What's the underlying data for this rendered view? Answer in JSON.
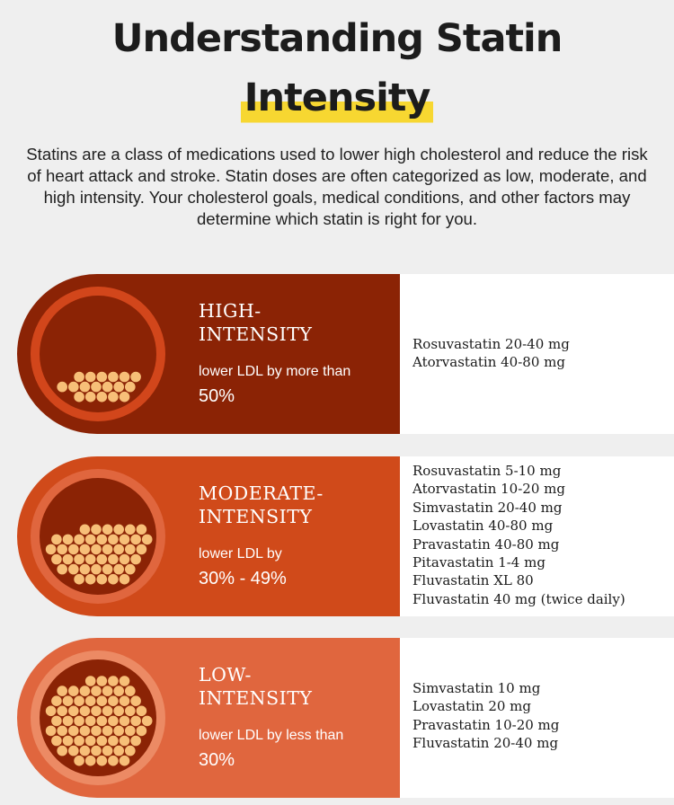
{
  "title": {
    "line1": "Understanding Statin",
    "line2": "Intensity"
  },
  "intro": "Statins are a class of medications used to lower high cholesterol and reduce the risk of heart attack and stroke. Statin doses are often categorized as low, moderate, and high intensity. Your cholesterol goals, medical conditions, and other factors may determine which statin is right for you.",
  "bands": [
    {
      "label1": "HIGH-",
      "label2": "INTENSITY",
      "sub": "lower LDL by more than",
      "pct": "50%",
      "drugs": [
        "Rosuvastatin 20-40 mg",
        "Atorvastatin 40-80 mg"
      ]
    },
    {
      "label1": "MODERATE-",
      "label2": "INTENSITY",
      "sub": "lower LDL by",
      "pct": "30% - 49%",
      "drugs": [
        "Rosuvastatin 5-10 mg",
        "Atorvastatin 10-20 mg",
        "Simvastatin 20-40 mg",
        "Lovastatin 40-80 mg",
        "Pravastatin 40-80 mg",
        "Pitavastatin 1-4 mg",
        "Fluvastatin XL 80",
        "Fluvastatin 40 mg (twice daily)"
      ]
    },
    {
      "label1": "LOW-",
      "label2": "INTENSITY",
      "sub": "lower LDL by less than",
      "pct": "30%",
      "drugs": [
        "Simvastatin 10 mg",
        "Lovastatin 20 mg",
        "Pravastatin 10-20 mg",
        "Fluvastatin 20-40 mg"
      ]
    }
  ],
  "colors": {
    "background": "#efefef",
    "highlight": "#f7d731",
    "high_band": "#8b2305",
    "moderate_band": "#d04a1a",
    "low_band": "#e0663e",
    "particle": "#f7bf78"
  }
}
